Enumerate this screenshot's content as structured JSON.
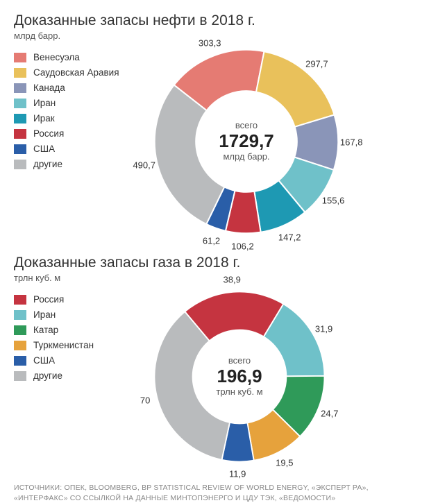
{
  "oil": {
    "type": "donut",
    "title": "Доказанные запасы нефти в 2018 г.",
    "subtitle": "млрд барр.",
    "center_top": "всего",
    "center_value": "1729,7",
    "center_unit": "млрд барр.",
    "title_fontsize": 21,
    "label_fontsize": 13,
    "inner_radius_ratio": 0.55,
    "background_color": "#ffffff",
    "start_angle_deg": -52,
    "segments": [
      {
        "label": "Венесуэла",
        "value": 303.3,
        "display": "303,3",
        "color": "#e57b73"
      },
      {
        "label": "Саудовская Аравия",
        "value": 297.7,
        "display": "297,7",
        "color": "#e9c15b"
      },
      {
        "label": "Канада",
        "value": 167.8,
        "display": "167,8",
        "color": "#8a95b8"
      },
      {
        "label": "Иран",
        "value": 155.6,
        "display": "155,6",
        "color": "#6fc1c9"
      },
      {
        "label": "Ирак",
        "value": 147.2,
        "display": "147,2",
        "color": "#1e99b3"
      },
      {
        "label": "Россия",
        "value": 106.2,
        "display": "106,2",
        "color": "#c53440"
      },
      {
        "label": "США",
        "value": 61.2,
        "display": "61,2",
        "color": "#2a5ea8"
      },
      {
        "label": "другие",
        "value": 490.7,
        "display": "490,7",
        "color": "#b9bbbd"
      }
    ]
  },
  "gas": {
    "type": "donut",
    "title": "Доказанные запасы газа в 2018 г.",
    "subtitle": "трлн куб. м",
    "center_top": "всего",
    "center_value": "196,9",
    "center_unit": "трлн куб. м",
    "title_fontsize": 21,
    "label_fontsize": 13,
    "inner_radius_ratio": 0.55,
    "background_color": "#ffffff",
    "start_angle_deg": -40,
    "segments": [
      {
        "label": "Россия",
        "value": 38.9,
        "display": "38,9",
        "color": "#c53440"
      },
      {
        "label": "Иран",
        "value": 31.9,
        "display": "31,9",
        "color": "#6fc1c9"
      },
      {
        "label": "Катар",
        "value": 24.7,
        "display": "24,7",
        "color": "#2f9a59"
      },
      {
        "label": "Туркменистан",
        "value": 19.5,
        "display": "19,5",
        "color": "#e6a23c"
      },
      {
        "label": "США",
        "value": 11.9,
        "display": "11,9",
        "color": "#2a5ea8"
      },
      {
        "label": "другие",
        "value": 70.0,
        "display": "70",
        "color": "#b9bbbd"
      }
    ]
  },
  "sources": {
    "line1": "ИСТОЧНИКИ: ОПЕК, BLOOMBERG, BP STATISTICAL REVIEW OF WORLD ENERGY, «ЭКСПЕРТ РА»,",
    "line2": "«ИНТЕРФАКС» СО ССЫЛКОЙ НА ДАННЫЕ МИНТОПЭНЕРГО И ЦДУ ТЭК, «ВЕДОМОСТИ»"
  }
}
